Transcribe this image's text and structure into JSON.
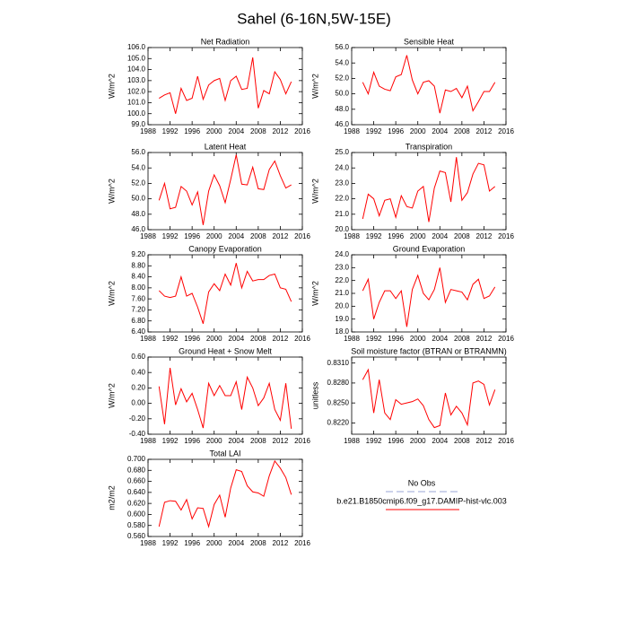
{
  "title": "Sahel (6-16N,5W-15E)",
  "legend": [
    {
      "name": "No Obs",
      "color": "#9aa4d6",
      "dash": true
    },
    {
      "name": "b.e21.B1850cmip6.f09_g17.DAMIP-hist-vlc.003",
      "color": "#ff0000",
      "dash": false
    }
  ],
  "chart_data": [
    {
      "type": "line",
      "title": "Net Radiation",
      "ylabel": "W/m^2",
      "x": [
        1990,
        1991,
        1992,
        1993,
        1994,
        1995,
        1996,
        1997,
        1998,
        1999,
        2000,
        2001,
        2002,
        2003,
        2004,
        2005,
        2006,
        2007,
        2008,
        2009,
        2010,
        2011,
        2012,
        2013,
        2014
      ],
      "xlim": [
        1988,
        2016
      ],
      "xticks": [
        1988,
        1992,
        1996,
        2000,
        2004,
        2008,
        2012,
        2016
      ],
      "ylim": [
        99,
        106
      ],
      "yticks": [
        {
          "value": 99,
          "label": "99.0"
        },
        {
          "value": 100,
          "label": "100.0"
        },
        {
          "value": 101,
          "label": "101.0"
        },
        {
          "value": 102,
          "label": "102.0"
        },
        {
          "value": 103,
          "label": "103.0"
        },
        {
          "value": 104,
          "label": "104.0"
        },
        {
          "value": 105,
          "label": "105.0"
        },
        {
          "value": 106,
          "label": "106.0"
        }
      ],
      "series": [
        {
          "color": "#ff0000",
          "values": [
            101.4,
            101.7,
            101.9,
            100.0,
            102.3,
            101.2,
            101.4,
            103.4,
            101.3,
            102.6,
            103.0,
            103.2,
            101.2,
            103.0,
            103.4,
            102.2,
            102.3,
            105.1,
            100.5,
            102.1,
            101.8,
            103.8,
            103.1,
            101.8,
            102.9
          ]
        }
      ]
    },
    {
      "type": "line",
      "title": "Sensible Heat",
      "ylabel": "W/m^2",
      "x": [
        1990,
        1991,
        1992,
        1993,
        1994,
        1995,
        1996,
        1997,
        1998,
        1999,
        2000,
        2001,
        2002,
        2003,
        2004,
        2005,
        2006,
        2007,
        2008,
        2009,
        2010,
        2011,
        2012,
        2013,
        2014
      ],
      "xlim": [
        1988,
        2016
      ],
      "xticks": [
        1988,
        1992,
        1996,
        2000,
        2004,
        2008,
        2012,
        2016
      ],
      "ylim": [
        46,
        56
      ],
      "yticks": [
        {
          "value": 46,
          "label": "46.0"
        },
        {
          "value": 48,
          "label": "48.0"
        },
        {
          "value": 50,
          "label": "50.0"
        },
        {
          "value": 52,
          "label": "52.0"
        },
        {
          "value": 54,
          "label": "54.0"
        },
        {
          "value": 56,
          "label": "56.0"
        }
      ],
      "series": [
        {
          "color": "#ff0000",
          "values": [
            51.5,
            50.0,
            52.8,
            51.0,
            50.6,
            50.4,
            52.2,
            52.5,
            55.0,
            51.8,
            50.0,
            51.5,
            51.7,
            51.0,
            47.5,
            50.5,
            50.3,
            50.7,
            49.5,
            51.0,
            47.8,
            49.0,
            50.3,
            50.3,
            51.5
          ]
        }
      ]
    },
    {
      "type": "line",
      "title": "Latent Heat",
      "ylabel": "W/m^2",
      "x": [
        1990,
        1991,
        1992,
        1993,
        1994,
        1995,
        1996,
        1997,
        1998,
        1999,
        2000,
        2001,
        2002,
        2003,
        2004,
        2005,
        2006,
        2007,
        2008,
        2009,
        2010,
        2011,
        2012,
        2013,
        2014
      ],
      "xlim": [
        1988,
        2016
      ],
      "xticks": [
        1988,
        1992,
        1996,
        2000,
        2004,
        2008,
        2012,
        2016
      ],
      "ylim": [
        46,
        56
      ],
      "yticks": [
        {
          "value": 46,
          "label": "46.0"
        },
        {
          "value": 48,
          "label": "48.0"
        },
        {
          "value": 50,
          "label": "50.0"
        },
        {
          "value": 52,
          "label": "52.0"
        },
        {
          "value": 54,
          "label": "54.0"
        },
        {
          "value": 56,
          "label": "56.0"
        }
      ],
      "series": [
        {
          "color": "#ff0000",
          "values": [
            49.8,
            52.0,
            48.7,
            48.9,
            51.6,
            51.0,
            49.2,
            50.9,
            46.6,
            51.0,
            53.1,
            51.7,
            49.5,
            52.5,
            55.7,
            51.9,
            51.8,
            54.1,
            51.3,
            51.2,
            53.8,
            54.9,
            53.0,
            51.4,
            51.8
          ]
        }
      ]
    },
    {
      "type": "line",
      "title": "Transpiration",
      "ylabel": "W/m^2",
      "x": [
        1990,
        1991,
        1992,
        1993,
        1994,
        1995,
        1996,
        1997,
        1998,
        1999,
        2000,
        2001,
        2002,
        2003,
        2004,
        2005,
        2006,
        2007,
        2008,
        2009,
        2010,
        2011,
        2012,
        2013,
        2014
      ],
      "xlim": [
        1988,
        2016
      ],
      "xticks": [
        1988,
        1992,
        1996,
        2000,
        2004,
        2008,
        2012,
        2016
      ],
      "ylim": [
        20,
        25
      ],
      "yticks": [
        {
          "value": 20,
          "label": "20.0"
        },
        {
          "value": 21,
          "label": "21.0"
        },
        {
          "value": 22,
          "label": "22.0"
        },
        {
          "value": 23,
          "label": "23.0"
        },
        {
          "value": 24,
          "label": "24.0"
        },
        {
          "value": 25,
          "label": "25.0"
        }
      ],
      "series": [
        {
          "color": "#ff0000",
          "values": [
            20.7,
            22.3,
            22.0,
            20.9,
            21.9,
            22.0,
            20.8,
            22.2,
            21.5,
            21.4,
            22.5,
            22.8,
            20.5,
            22.7,
            23.8,
            23.7,
            21.8,
            24.7,
            21.9,
            22.4,
            23.6,
            24.3,
            24.2,
            22.5,
            22.8
          ]
        }
      ]
    },
    {
      "type": "line",
      "title": "Canopy Evaporation",
      "ylabel": "W/m^2",
      "x": [
        1990,
        1991,
        1992,
        1993,
        1994,
        1995,
        1996,
        1997,
        1998,
        1999,
        2000,
        2001,
        2002,
        2003,
        2004,
        2005,
        2006,
        2007,
        2008,
        2009,
        2010,
        2011,
        2012,
        2013,
        2014
      ],
      "xlim": [
        1988,
        2016
      ],
      "xticks": [
        1988,
        1992,
        1996,
        2000,
        2004,
        2008,
        2012,
        2016
      ],
      "ylim": [
        6.4,
        9.2
      ],
      "yticks": [
        {
          "value": 6.4,
          "label": "6.40"
        },
        {
          "value": 6.8,
          "label": "6.80"
        },
        {
          "value": 7.2,
          "label": "7.20"
        },
        {
          "value": 7.6,
          "label": "7.60"
        },
        {
          "value": 8.0,
          "label": "8.00"
        },
        {
          "value": 8.4,
          "label": "8.40"
        },
        {
          "value": 8.8,
          "label": "8.80"
        },
        {
          "value": 9.2,
          "label": "9.20"
        }
      ],
      "series": [
        {
          "color": "#ff0000",
          "values": [
            7.9,
            7.7,
            7.65,
            7.7,
            8.4,
            7.7,
            7.8,
            7.3,
            6.7,
            7.85,
            8.15,
            7.9,
            8.5,
            8.1,
            8.9,
            8.0,
            8.6,
            8.25,
            8.3,
            8.3,
            8.45,
            8.5,
            8.0,
            7.95,
            7.5
          ]
        }
      ]
    },
    {
      "type": "line",
      "title": "Ground Evaporation",
      "ylabel": "W/m^2",
      "x": [
        1990,
        1991,
        1992,
        1993,
        1994,
        1995,
        1996,
        1997,
        1998,
        1999,
        2000,
        2001,
        2002,
        2003,
        2004,
        2005,
        2006,
        2007,
        2008,
        2009,
        2010,
        2011,
        2012,
        2013,
        2014
      ],
      "xlim": [
        1988,
        2016
      ],
      "xticks": [
        1988,
        1992,
        1996,
        2000,
        2004,
        2008,
        2012,
        2016
      ],
      "ylim": [
        18,
        24
      ],
      "yticks": [
        {
          "value": 18,
          "label": "18.0"
        },
        {
          "value": 19,
          "label": "19.0"
        },
        {
          "value": 20,
          "label": "20.0"
        },
        {
          "value": 21,
          "label": "21.0"
        },
        {
          "value": 22,
          "label": "22.0"
        },
        {
          "value": 23,
          "label": "23.0"
        },
        {
          "value": 24,
          "label": "24.0"
        }
      ],
      "series": [
        {
          "color": "#ff0000",
          "values": [
            21.2,
            22.1,
            19.0,
            20.3,
            21.2,
            21.2,
            20.6,
            21.2,
            18.4,
            21.3,
            22.4,
            21.0,
            20.5,
            21.3,
            23.0,
            20.3,
            21.3,
            21.2,
            21.1,
            20.5,
            21.7,
            22.1,
            20.6,
            20.8,
            21.5
          ]
        }
      ]
    },
    {
      "type": "line",
      "title": "Ground Heat + Snow Melt",
      "ylabel": "W/m^2",
      "x": [
        1990,
        1991,
        1992,
        1993,
        1994,
        1995,
        1996,
        1997,
        1998,
        1999,
        2000,
        2001,
        2002,
        2003,
        2004,
        2005,
        2006,
        2007,
        2008,
        2009,
        2010,
        2011,
        2012,
        2013,
        2014
      ],
      "xlim": [
        1988,
        2016
      ],
      "xticks": [
        1988,
        1992,
        1996,
        2000,
        2004,
        2008,
        2012,
        2016
      ],
      "ylim": [
        -0.4,
        0.6
      ],
      "yticks": [
        {
          "value": -0.4,
          "label": "-0.40"
        },
        {
          "value": -0.2,
          "label": "-0.20"
        },
        {
          "value": 0,
          "label": "0.00"
        },
        {
          "value": 0.2,
          "label": "0.20"
        },
        {
          "value": 0.4,
          "label": "0.40"
        },
        {
          "value": 0.6,
          "label": "0.60"
        }
      ],
      "series": [
        {
          "color": "#ff0000",
          "values": [
            0.22,
            -0.27,
            0.46,
            -0.02,
            0.19,
            0.02,
            0.13,
            -0.08,
            -0.32,
            0.26,
            0.1,
            0.23,
            0.1,
            0.1,
            0.28,
            -0.08,
            0.34,
            0.2,
            -0.03,
            0.07,
            0.26,
            -0.08,
            -0.22,
            0.26,
            -0.33
          ]
        }
      ]
    },
    {
      "type": "line",
      "title": "Soil moisture factor (BTRAN or BTRANMN)",
      "ylabel": "unitless",
      "x": [
        1990,
        1991,
        1992,
        1993,
        1994,
        1995,
        1996,
        1997,
        1998,
        1999,
        2000,
        2001,
        2002,
        2003,
        2004,
        2005,
        2006,
        2007,
        2008,
        2009,
        2010,
        2011,
        2012,
        2013,
        2014
      ],
      "xlim": [
        1988,
        2016
      ],
      "xticks": [
        1988,
        1992,
        1996,
        2000,
        2004,
        2008,
        2012,
        2016
      ],
      "ylim": [
        0.8203,
        0.8319
      ],
      "yticks": [
        {
          "value": 0.822,
          "label": "0.8220"
        },
        {
          "value": 0.825,
          "label": "0.8250"
        },
        {
          "value": 0.828,
          "label": "0.8280"
        },
        {
          "value": 0.831,
          "label": "0.8310"
        }
      ],
      "series": [
        {
          "color": "#ff0000",
          "values": [
            0.8285,
            0.83,
            0.8235,
            0.8285,
            0.8235,
            0.8225,
            0.8255,
            0.8248,
            0.825,
            0.8252,
            0.8256,
            0.8246,
            0.8225,
            0.8213,
            0.8216,
            0.8265,
            0.8232,
            0.8245,
            0.8235,
            0.8217,
            0.828,
            0.8283,
            0.8278,
            0.8247,
            0.827
          ]
        }
      ]
    },
    {
      "type": "line",
      "title": "Total LAI",
      "ylabel": "m2/m2",
      "x": [
        1990,
        1991,
        1992,
        1993,
        1994,
        1995,
        1996,
        1997,
        1998,
        1999,
        2000,
        2001,
        2002,
        2003,
        2004,
        2005,
        2006,
        2007,
        2008,
        2009,
        2010,
        2011,
        2012,
        2013,
        2014
      ],
      "xlim": [
        1988,
        2016
      ],
      "xticks": [
        1988,
        1992,
        1996,
        2000,
        2004,
        2008,
        2012,
        2016
      ],
      "ylim": [
        0.56,
        0.7
      ],
      "yticks": [
        {
          "value": 0.56,
          "label": "0.560"
        },
        {
          "value": 0.58,
          "label": "0.580"
        },
        {
          "value": 0.6,
          "label": "0.600"
        },
        {
          "value": 0.62,
          "label": "0.620"
        },
        {
          "value": 0.64,
          "label": "0.640"
        },
        {
          "value": 0.66,
          "label": "0.660"
        },
        {
          "value": 0.68,
          "label": "0.680"
        },
        {
          "value": 0.7,
          "label": "0.700"
        }
      ],
      "series": [
        {
          "color": "#ff0000",
          "values": [
            0.578,
            0.622,
            0.625,
            0.624,
            0.608,
            0.627,
            0.592,
            0.612,
            0.611,
            0.578,
            0.618,
            0.635,
            0.595,
            0.648,
            0.681,
            0.678,
            0.652,
            0.641,
            0.639,
            0.633,
            0.67,
            0.697,
            0.684,
            0.667,
            0.636
          ]
        }
      ]
    }
  ]
}
